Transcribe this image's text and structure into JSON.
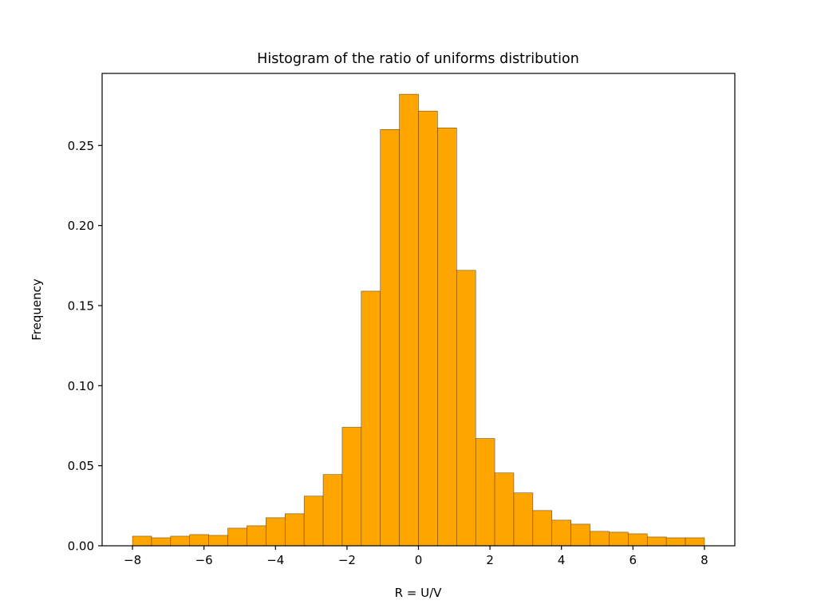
{
  "chart_data": {
    "type": "bar",
    "title": "Histogram of the ratio of uniforms distribution",
    "xlabel": "R = U/V",
    "ylabel": "Frequency",
    "xlim": [
      -8.85,
      8.85
    ],
    "ylim": [
      0,
      0.295
    ],
    "xticks": [
      -8,
      -6,
      -4,
      -2,
      0,
      2,
      4,
      6,
      8
    ],
    "xtick_labels": [
      "−8",
      "−6",
      "−4",
      "−2",
      "0",
      "2",
      "4",
      "6",
      "8"
    ],
    "yticks": [
      0,
      0.05,
      0.1,
      0.15,
      0.2,
      0.25
    ],
    "ytick_labels": [
      "0.00",
      "0.05",
      "0.10",
      "0.15",
      "0.20",
      "0.25"
    ],
    "bins": {
      "start": -8,
      "end": 8,
      "count": 30
    },
    "values": [
      0.006,
      0.005,
      0.006,
      0.007,
      0.0065,
      0.011,
      0.0125,
      0.0175,
      0.02,
      0.031,
      0.0445,
      0.074,
      0.159,
      0.26,
      0.282,
      0.2715,
      0.261,
      0.172,
      0.067,
      0.0455,
      0.033,
      0.022,
      0.016,
      0.0135,
      0.009,
      0.0085,
      0.0075,
      0.0055,
      0.005,
      0.005
    ],
    "colors": {
      "bar_fill": "#ffa500",
      "bar_edge": "#5a3a00",
      "axis": "#000000"
    },
    "grid": false
  }
}
